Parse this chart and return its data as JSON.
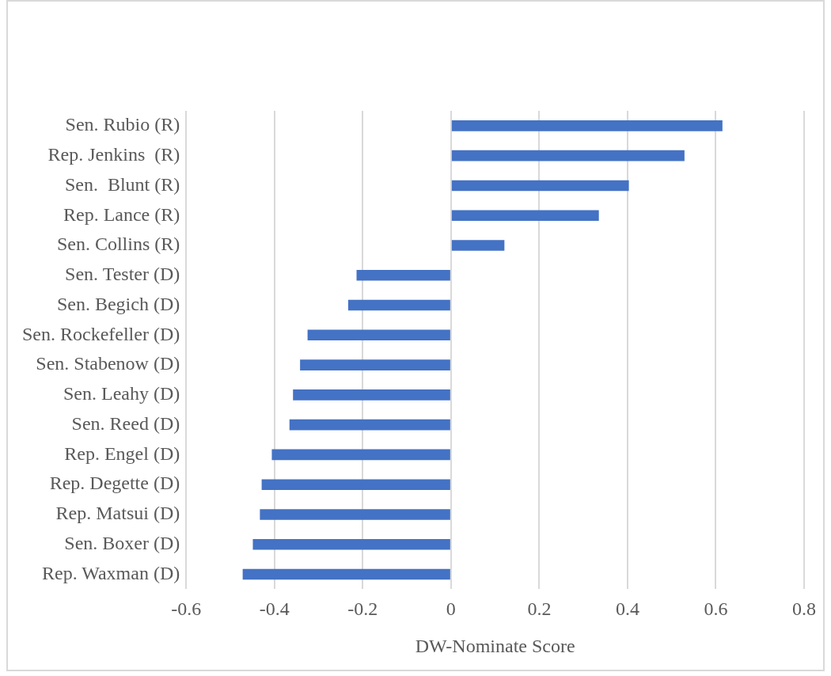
{
  "chart_data": {
    "type": "bar",
    "orientation": "horizontal",
    "xlabel": "DW-Nominate Score",
    "categories": [
      "Sen. Rubio (R)",
      "Rep. Jenkins  (R)",
      "Sen.  Blunt (R)",
      "Rep. Lance (R)",
      "Sen. Collins (R)",
      "Sen. Tester (D)",
      "Sen. Begich (D)",
      "Sen. Rockefeller (D)",
      "Sen. Stabenow (D)",
      "Sen. Leahy (D)",
      "Sen. Reed (D)",
      "Rep. Engel (D)",
      "Rep. Degette (D)",
      "Rep. Matsui (D)",
      "Sen. Boxer (D)",
      "Rep. Waxman (D)"
    ],
    "values": [
      0.615,
      0.529,
      0.403,
      0.335,
      0.121,
      -0.214,
      -0.233,
      -0.325,
      -0.342,
      -0.358,
      -0.366,
      -0.406,
      -0.429,
      -0.433,
      -0.449,
      -0.472
    ],
    "color": "#4472c4",
    "xlim": [
      -0.6,
      0.8
    ],
    "xticks": [
      -0.6,
      -0.4,
      -0.2,
      0,
      0.2,
      0.4,
      0.6,
      0.8
    ],
    "grid": "x",
    "legend": false
  }
}
